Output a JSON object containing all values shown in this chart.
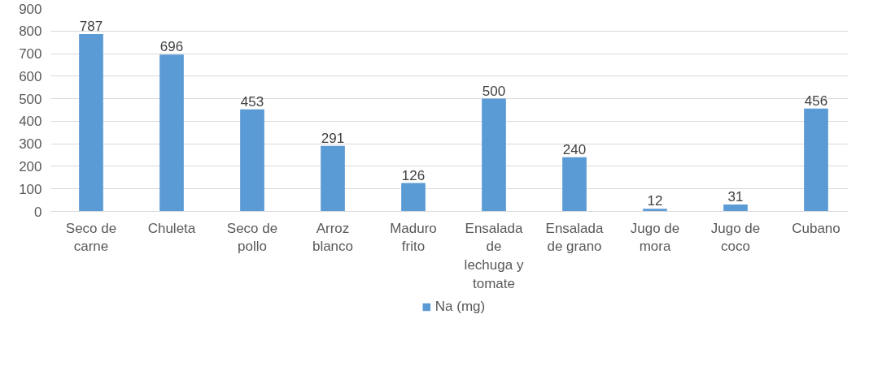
{
  "chart_data": {
    "type": "bar",
    "categories": [
      "Seco de carne",
      "Chuleta",
      "Seco de pollo",
      "Arroz blanco",
      "Maduro frito",
      "Ensalada de lechuga y tomate",
      "Ensalada de grano",
      "Jugo de mora",
      "Jugo de coco",
      "Cubano"
    ],
    "series": [
      {
        "name": "Na (mg)",
        "color": "#5b9bd5",
        "values": [
          787,
          696,
          453,
          291,
          126,
          500,
          240,
          12,
          31,
          456
        ]
      }
    ],
    "ylim": [
      0,
      900
    ],
    "yticks": [
      0,
      100,
      200,
      300,
      400,
      500,
      600,
      700,
      800,
      900
    ],
    "grid": "y",
    "legend": "bottom",
    "data_labels": true
  }
}
